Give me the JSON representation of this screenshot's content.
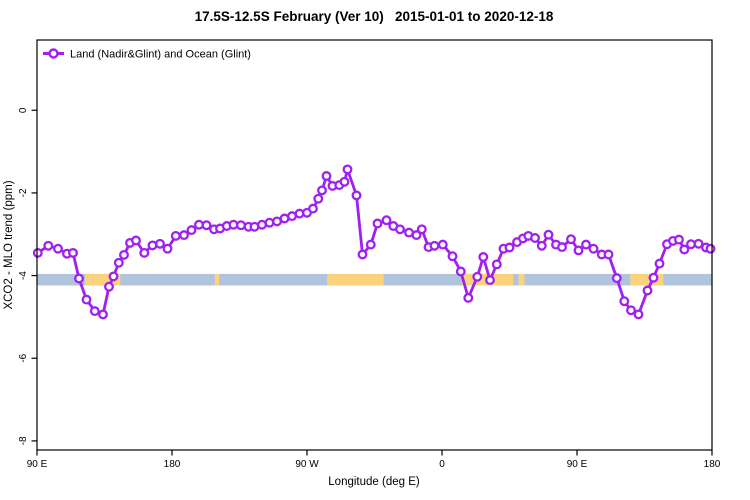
{
  "page": {
    "background": "#ffffff"
  },
  "chart_data": {
    "type": "line",
    "title": "17.5S-12.5S February (Ver 10)   2015-01-01 to 2020-12-18",
    "xlabel": "Longitude (deg E)",
    "ylabel": "XCO2 - MLO trend (ppm)",
    "xlim_deg": [
      90,
      540
    ],
    "ylim_ppm": [
      -8.22,
      1.7
    ],
    "grid": false,
    "frame_color": "#000000",
    "legend": {
      "position": "top-left-inside",
      "entries": [
        {
          "label": "Land (Nadir&Glint) and Ocean (Glint)",
          "color": "#a020f0",
          "marker": "open-circle"
        }
      ]
    },
    "x_ticks": [
      {
        "deg": 90,
        "label": "90 E"
      },
      {
        "deg": 180,
        "label": "180"
      },
      {
        "deg": 270,
        "label": "90 W"
      },
      {
        "deg": 360,
        "label": "0"
      },
      {
        "deg": 450,
        "label": "90 E"
      },
      {
        "deg": 540,
        "label": "180"
      }
    ],
    "y_ticks": [
      {
        "ppm": 0,
        "label": "0"
      },
      {
        "ppm": -2,
        "label": "-2"
      },
      {
        "ppm": -4,
        "label": "-4"
      },
      {
        "ppm": -6,
        "label": "-6"
      },
      {
        "ppm": -8,
        "label": "-8"
      }
    ],
    "map_strip": {
      "description": "land/ocean geography band for latitude strip 17.5S-12.5S",
      "ppm_top": -3.96,
      "ppm_bottom": -4.24,
      "ocean_color": "#b0c4de",
      "land_color": "#fbd37d",
      "ocean_span_deg": [
        90,
        540
      ],
      "land_spans_deg": [
        [
          122,
          145.5
        ],
        [
          208.5,
          211.5
        ],
        [
          283.5,
          321
        ],
        [
          373.5,
          407.5
        ],
        [
          411,
          415
        ],
        [
          485.5,
          507.5
        ]
      ]
    },
    "series": [
      {
        "name": "Land (Nadir&Glint) and Ocean (Glint)",
        "color": "#a020f0",
        "marker": "open-circle",
        "marker_fill": "#ffffff",
        "points_deg_ppm": [
          [
            90.5,
            -3.45
          ],
          [
            97.5,
            -3.28
          ],
          [
            104,
            -3.35
          ],
          [
            110,
            -3.47
          ],
          [
            114,
            -3.45
          ],
          [
            118,
            -4.07
          ],
          [
            123,
            -4.58
          ],
          [
            128.5,
            -4.86
          ],
          [
            134,
            -4.94
          ],
          [
            138,
            -4.27
          ],
          [
            141,
            -4.02
          ],
          [
            144.5,
            -3.69
          ],
          [
            148,
            -3.5
          ],
          [
            152,
            -3.21
          ],
          [
            156,
            -3.15
          ],
          [
            161.5,
            -3.45
          ],
          [
            167,
            -3.27
          ],
          [
            172,
            -3.23
          ],
          [
            177,
            -3.35
          ],
          [
            182.5,
            -3.04
          ],
          [
            188,
            -3.02
          ],
          [
            193,
            -2.9
          ],
          [
            198,
            -2.77
          ],
          [
            203,
            -2.78
          ],
          [
            208,
            -2.88
          ],
          [
            212,
            -2.86
          ],
          [
            216.5,
            -2.8
          ],
          [
            221,
            -2.77
          ],
          [
            226,
            -2.78
          ],
          [
            231,
            -2.82
          ],
          [
            235,
            -2.82
          ],
          [
            240,
            -2.77
          ],
          [
            245,
            -2.72
          ],
          [
            250,
            -2.69
          ],
          [
            255,
            -2.62
          ],
          [
            260,
            -2.56
          ],
          [
            265,
            -2.5
          ],
          [
            270,
            -2.48
          ],
          [
            274,
            -2.38
          ],
          [
            277.5,
            -2.14
          ],
          [
            280,
            -1.94
          ],
          [
            283,
            -1.59
          ],
          [
            287,
            -1.83
          ],
          [
            291.5,
            -1.81
          ],
          [
            295,
            -1.73
          ],
          [
            297,
            -1.43
          ],
          [
            303,
            -2.06
          ],
          [
            307,
            -3.49
          ],
          [
            312.5,
            -3.25
          ],
          [
            317,
            -2.74
          ],
          [
            323,
            -2.66
          ],
          [
            327.5,
            -2.8
          ],
          [
            332,
            -2.88
          ],
          [
            338,
            -2.96
          ],
          [
            343,
            -3.02
          ],
          [
            346.5,
            -2.88
          ],
          [
            351,
            -3.31
          ],
          [
            355,
            -3.28
          ],
          [
            360.5,
            -3.25
          ],
          [
            367,
            -3.53
          ],
          [
            372.5,
            -3.9
          ],
          [
            377.5,
            -4.54
          ],
          [
            383.5,
            -4.03
          ],
          [
            387.5,
            -3.55
          ],
          [
            392,
            -4.11
          ],
          [
            396.5,
            -3.73
          ],
          [
            401,
            -3.35
          ],
          [
            405,
            -3.32
          ],
          [
            410,
            -3.19
          ],
          [
            414,
            -3.1
          ],
          [
            417.5,
            -3.04
          ],
          [
            422,
            -3.09
          ],
          [
            426.5,
            -3.28
          ],
          [
            431,
            -3.01
          ],
          [
            436,
            -3.25
          ],
          [
            440,
            -3.31
          ],
          [
            446,
            -3.12
          ],
          [
            451,
            -3.39
          ],
          [
            456,
            -3.25
          ],
          [
            461,
            -3.35
          ],
          [
            466.5,
            -3.49
          ],
          [
            471,
            -3.49
          ],
          [
            476.5,
            -4.06
          ],
          [
            481.5,
            -4.62
          ],
          [
            486,
            -4.84
          ],
          [
            491,
            -4.94
          ],
          [
            497,
            -4.36
          ],
          [
            501,
            -4.05
          ],
          [
            505,
            -3.71
          ],
          [
            510,
            -3.24
          ],
          [
            514,
            -3.16
          ],
          [
            518,
            -3.13
          ],
          [
            521.5,
            -3.37
          ],
          [
            526,
            -3.24
          ],
          [
            531,
            -3.23
          ],
          [
            536,
            -3.32
          ],
          [
            539,
            -3.35
          ]
        ]
      }
    ]
  }
}
